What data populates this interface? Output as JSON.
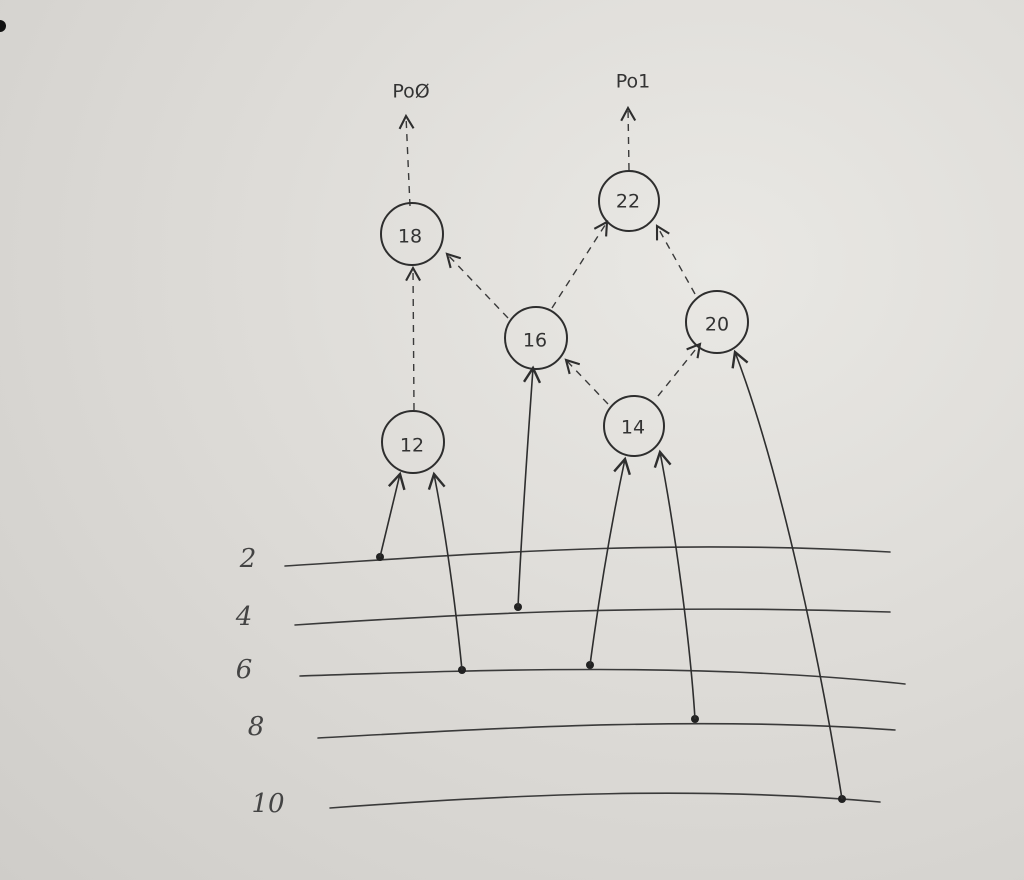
{
  "diagram": {
    "outputs": [
      {
        "id": "out0",
        "label": "PoØ",
        "from": "n18"
      },
      {
        "id": "out1",
        "label": "Po1",
        "from": "n22"
      }
    ],
    "inputs": [
      {
        "id": "in2",
        "label": "2"
      },
      {
        "id": "in4",
        "label": "4"
      },
      {
        "id": "in6",
        "label": "6"
      },
      {
        "id": "in8",
        "label": "8"
      },
      {
        "id": "in10",
        "label": "10"
      }
    ],
    "nodes": [
      {
        "id": "n12",
        "label": "12"
      },
      {
        "id": "n14",
        "label": "14"
      },
      {
        "id": "n16",
        "label": "16"
      },
      {
        "id": "n18",
        "label": "18"
      },
      {
        "id": "n20",
        "label": "20"
      },
      {
        "id": "n22",
        "label": "22"
      }
    ],
    "solid_edges": [
      {
        "from": "in2",
        "to": "n12"
      },
      {
        "from": "in6",
        "to": "n12"
      },
      {
        "from": "in4",
        "to": "n16"
      },
      {
        "from": "in6",
        "to": "n14"
      },
      {
        "from": "in8",
        "to": "n14"
      },
      {
        "from": "in10",
        "to": "n20"
      }
    ],
    "dashed_edges": [
      {
        "from": "n12",
        "to": "n18"
      },
      {
        "from": "n16",
        "to": "n18"
      },
      {
        "from": "n16",
        "to": "n22"
      },
      {
        "from": "n14",
        "to": "n16"
      },
      {
        "from": "n14",
        "to": "n20"
      },
      {
        "from": "n20",
        "to": "n22"
      }
    ]
  }
}
